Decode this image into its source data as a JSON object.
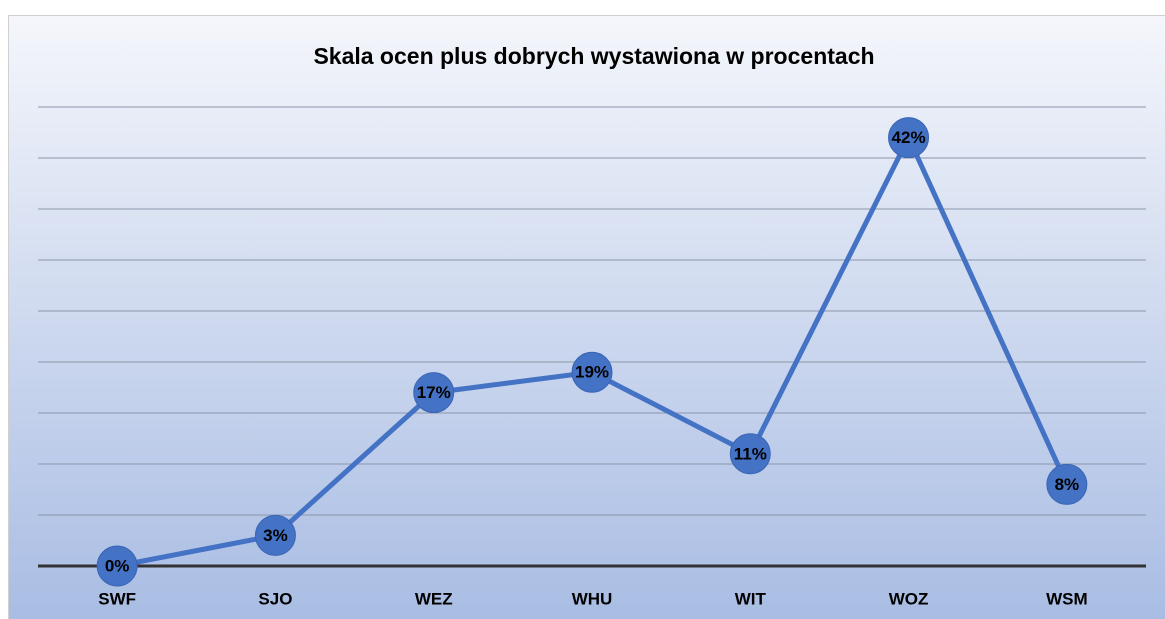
{
  "chart_data": {
    "type": "line",
    "title": "Skala ocen plus dobrych wystawiona w procentach",
    "categories": [
      "SWF",
      "SJO",
      "WEZ",
      "WHU",
      "WIT",
      "WOZ",
      "WSM"
    ],
    "values": [
      0,
      3,
      17,
      19,
      11,
      42,
      8
    ],
    "value_labels": [
      "0%",
      "3%",
      "17%",
      "19%",
      "11%",
      "42%",
      "8%"
    ],
    "color": "#4472c4",
    "ylim": [
      0,
      45
    ],
    "yticks": [
      0,
      5,
      10,
      15,
      20,
      25,
      30,
      35,
      40,
      45
    ],
    "grid": true
  }
}
